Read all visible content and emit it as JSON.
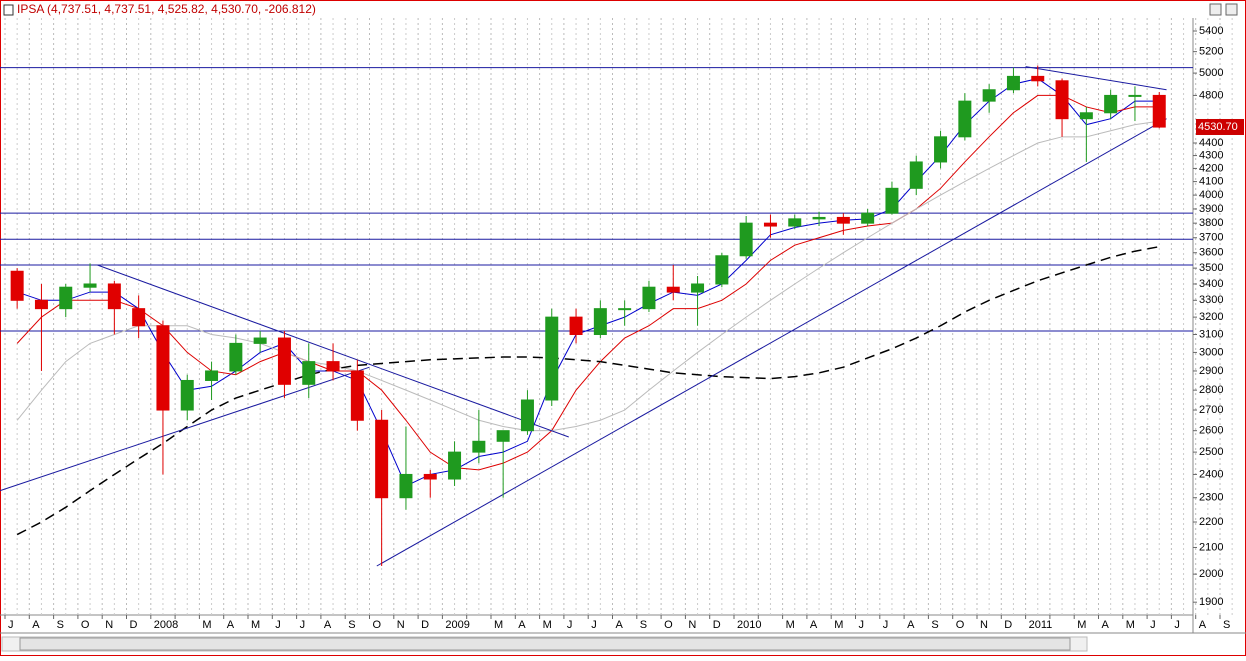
{
  "chart_data": {
    "type": "candlestick",
    "title": "IPSA (4,737.51, 4,737.51, 4,525.82, 4,530.70, -206.812)",
    "last_label": "4530.70",
    "last_value": 4530.7,
    "yscale": "log",
    "ylim": [
      1856,
      5530
    ],
    "yticks": [
      5400,
      5200,
      5000,
      4800,
      4400,
      4300,
      4200,
      4100,
      4000,
      3900,
      3800,
      3700,
      3600,
      3500,
      3400,
      3300,
      3200,
      3100,
      3000,
      2900,
      2800,
      2700,
      2600,
      2500,
      2400,
      2300,
      2200,
      2100,
      2000,
      1900
    ],
    "x_labels": [
      "J",
      "A",
      "S",
      "O",
      "N",
      "D",
      "2008",
      null,
      "M",
      "A",
      "M",
      "J",
      "J",
      "A",
      "S",
      "O",
      "N",
      "D",
      "2009",
      null,
      "M",
      "A",
      "M",
      "J",
      "J",
      "A",
      "S",
      "O",
      "N",
      "D",
      "2010",
      null,
      "M",
      "A",
      "M",
      "J",
      "J",
      "A",
      "S",
      "O",
      "N",
      "D",
      "2011",
      null,
      "M",
      "A",
      "M",
      "J",
      "J",
      "A",
      "S"
    ],
    "up_color": "#1f9a1f",
    "down_color": "#e00000",
    "open": [
      3480,
      3300,
      3250,
      3380,
      3400,
      3250,
      3150,
      2700,
      2850,
      2900,
      3050,
      3080,
      2830,
      2950,
      2900,
      2650,
      2300,
      2400,
      2380,
      2500,
      2550,
      2600,
      2750,
      3200,
      3100,
      3250,
      3250,
      3380,
      3350,
      3400,
      3580,
      3800,
      3780,
      3830,
      3840,
      3800,
      3870,
      4050,
      4250,
      4450,
      4750,
      4850,
      4970,
      4930,
      4600,
      4650,
      4800,
      4800
    ],
    "high": [
      3500,
      3400,
      3400,
      3530,
      3420,
      3330,
      3180,
      2880,
      2950,
      3100,
      3120,
      3120,
      3050,
      3050,
      2960,
      2700,
      2620,
      2420,
      2550,
      2700,
      2600,
      2800,
      3250,
      3250,
      3300,
      3300,
      3420,
      3520,
      3450,
      3600,
      3850,
      3860,
      3860,
      3880,
      3870,
      3900,
      4100,
      4300,
      4500,
      4820,
      4900,
      5050,
      5070,
      4950,
      4700,
      4850,
      4880,
      4830
    ],
    "low": [
      3250,
      2900,
      3200,
      3350,
      3100,
      3080,
      2400,
      2650,
      2750,
      2880,
      3000,
      2760,
      2760,
      2850,
      2600,
      2030,
      2250,
      2300,
      2350,
      2450,
      2300,
      2580,
      2720,
      3050,
      3080,
      3150,
      3230,
      3300,
      3150,
      3380,
      3560,
      3700,
      3760,
      3780,
      3720,
      3780,
      3860,
      4000,
      4200,
      4420,
      4650,
      4820,
      4880,
      4450,
      4250,
      4600,
      4580,
      4520
    ],
    "close": [
      3300,
      3250,
      3380,
      3400,
      3250,
      3150,
      2700,
      2850,
      2900,
      3050,
      3080,
      2830,
      2950,
      2900,
      2650,
      2300,
      2400,
      2380,
      2500,
      2550,
      2600,
      2750,
      3200,
      3100,
      3250,
      3250,
      3380,
      3350,
      3400,
      3580,
      3800,
      3780,
      3830,
      3840,
      3800,
      3870,
      4050,
      4250,
      4450,
      4750,
      4850,
      4970,
      4930,
      4600,
      4650,
      4800,
      4800,
      4530
    ],
    "series": [
      {
        "color": "#0000cc",
        "dash": false,
        "values": [
          3350,
          3300,
          3300,
          3350,
          3350,
          3250,
          3000,
          2800,
          2820,
          2900,
          3000,
          3050,
          2900,
          2900,
          2850,
          2600,
          2350,
          2400,
          2420,
          2480,
          2500,
          2550,
          2850,
          3100,
          3150,
          3200,
          3280,
          3350,
          3330,
          3400,
          3550,
          3720,
          3770,
          3800,
          3820,
          3830,
          3900,
          4100,
          4300,
          4550,
          4750,
          4900,
          4950,
          4800,
          4550,
          4600,
          4750,
          4750
        ]
      },
      {
        "color": "#dd0000",
        "dash": false,
        "values": [
          3050,
          3200,
          3300,
          3300,
          3300,
          3250,
          3150,
          3000,
          2900,
          2880,
          2950,
          3000,
          2950,
          2900,
          2900,
          2800,
          2650,
          2500,
          2430,
          2420,
          2450,
          2500,
          2600,
          2800,
          2950,
          3080,
          3150,
          3250,
          3250,
          3300,
          3400,
          3550,
          3650,
          3700,
          3750,
          3780,
          3800,
          3900,
          4050,
          4250,
          4450,
          4650,
          4800,
          4800,
          4700,
          4650,
          4700,
          4700
        ]
      },
      {
        "color": "#bbbbbb",
        "dash": false,
        "values": [
          2650,
          2800,
          2950,
          3050,
          3100,
          3150,
          3150,
          3150,
          3100,
          3080,
          3050,
          3000,
          2950,
          2930,
          2900,
          2850,
          2800,
          2750,
          2700,
          2650,
          2620,
          2600,
          2600,
          2620,
          2650,
          2700,
          2800,
          2900,
          3000,
          3100,
          3200,
          3300,
          3400,
          3500,
          3600,
          3700,
          3800,
          3900,
          4000,
          4100,
          4200,
          4300,
          4400,
          4450,
          4450,
          4500,
          4550,
          4580
        ]
      },
      {
        "color": "#000000",
        "dash": true,
        "values": [
          2150,
          2200,
          2260,
          2330,
          2400,
          2470,
          2540,
          2620,
          2700,
          2760,
          2800,
          2840,
          2880,
          2910,
          2930,
          2940,
          2950,
          2960,
          2965,
          2970,
          2975,
          2975,
          2970,
          2960,
          2950,
          2930,
          2910,
          2890,
          2880,
          2870,
          2865,
          2860,
          2870,
          2890,
          2920,
          2970,
          3020,
          3080,
          3150,
          3230,
          3300,
          3360,
          3420,
          3470,
          3520,
          3570,
          3610,
          3640
        ]
      }
    ],
    "line_color": "#1a1aa0",
    "hlines": [
      5050,
      3870,
      3690,
      3520,
      3120
    ],
    "trendlines": [
      {
        "x": [
          -0.2,
          15.0
        ],
        "y": [
          2330,
          2920
        ]
      },
      {
        "x": [
          3.8,
          23.2
        ],
        "y": [
          3520,
          2570
        ]
      },
      {
        "x": [
          15.3,
          47.8
        ],
        "y": [
          2030,
          4600
        ]
      },
      {
        "x": [
          42.0,
          47.8
        ],
        "y": [
          5060,
          4850
        ]
      }
    ]
  }
}
